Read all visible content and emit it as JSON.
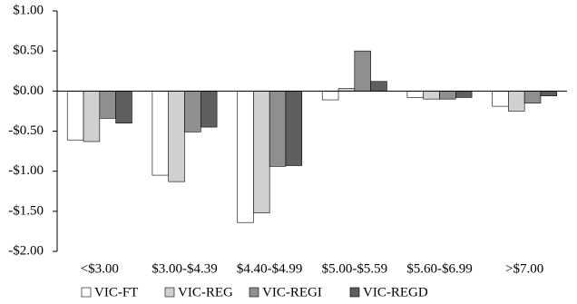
{
  "chart_data": {
    "type": "bar",
    "categories": [
      "<$3.00",
      "$3.00-$4.39",
      "$4.40-$4.99",
      "$5.00-$5.59",
      "$5.60-$6.99",
      ">$7.00"
    ],
    "series": [
      {
        "name": "VIC-FT",
        "color": "#ffffff",
        "values": [
          -0.61,
          -1.05,
          -1.64,
          -0.11,
          -0.08,
          -0.19
        ]
      },
      {
        "name": "VIC-REG",
        "color": "#d0d0d0",
        "values": [
          -0.63,
          -1.13,
          -1.52,
          0.03,
          -0.1,
          -0.25
        ]
      },
      {
        "name": "VIC-REGI",
        "color": "#8f8f8f",
        "values": [
          -0.34,
          -0.51,
          -0.94,
          0.5,
          -0.1,
          -0.15
        ]
      },
      {
        "name": "VIC-REGD",
        "color": "#5f5f5f",
        "values": [
          -0.4,
          -0.45,
          -0.93,
          0.12,
          -0.08,
          -0.06
        ]
      }
    ],
    "ylim": [
      -2,
      1
    ],
    "yticks": [
      {
        "value": 1,
        "label": "$1.00"
      },
      {
        "value": 0.5,
        "label": "$0.50"
      },
      {
        "value": 0,
        "label": "$0.00"
      },
      {
        "value": -0.5,
        "label": "-$0.50"
      },
      {
        "value": -1,
        "label": "-$1.00"
      },
      {
        "value": -1.5,
        "label": "-$1.50"
      },
      {
        "value": -2,
        "label": "-$2.00"
      }
    ],
    "legend": "bottom"
  }
}
